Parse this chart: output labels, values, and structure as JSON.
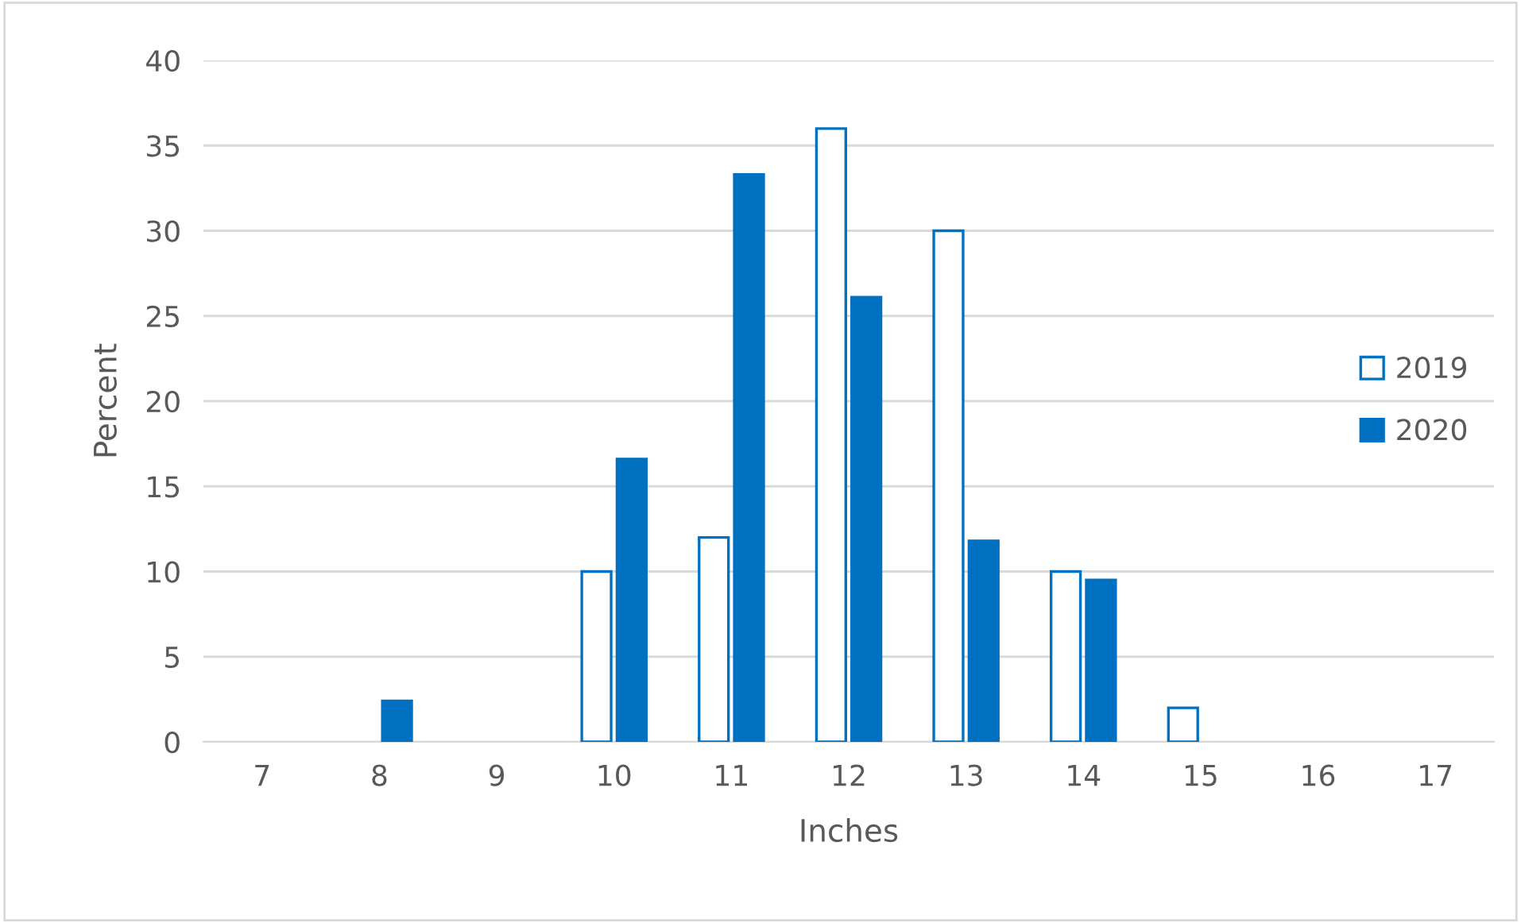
{
  "chart_data": {
    "type": "bar",
    "xlabel": "Inches",
    "ylabel": "Percent",
    "categories": [
      "7",
      "8",
      "9",
      "10",
      "11",
      "12",
      "13",
      "14",
      "15",
      "16",
      "17"
    ],
    "series": [
      {
        "name": "2019",
        "color": "#ffffff",
        "values": [
          0,
          0,
          0,
          10,
          12,
          36,
          30,
          10,
          2,
          0,
          0
        ]
      },
      {
        "name": "2020",
        "color": "#0070c0",
        "values": [
          0,
          2.4,
          0,
          16.6,
          33.3,
          26.1,
          11.8,
          9.5,
          0,
          0,
          0
        ]
      }
    ],
    "ylim": [
      0,
      40
    ],
    "yticks": [
      0,
      5,
      10,
      15,
      20,
      25,
      30,
      35,
      40
    ],
    "grid": "y",
    "legend": "right"
  }
}
